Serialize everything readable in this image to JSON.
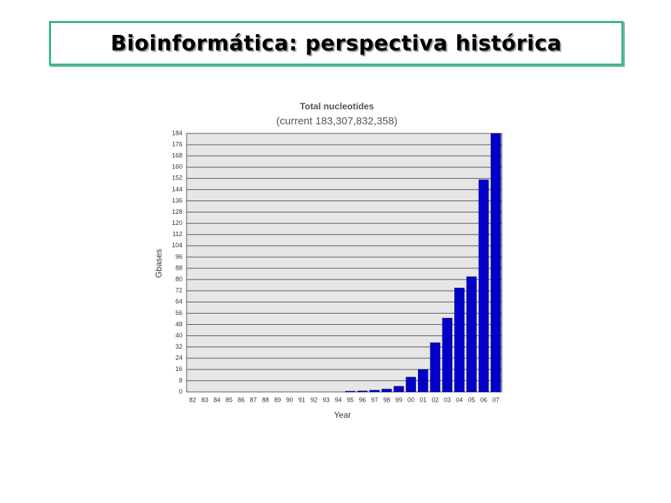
{
  "header": {
    "title": "Bioinformática: perspectiva histórica"
  },
  "chart_data": {
    "type": "bar",
    "title": "Total nucleotides",
    "subtitle": "(current 183,307,832,358)",
    "x_label": "Year",
    "y_label": "Gbases",
    "categories": [
      "82",
      "83",
      "84",
      "85",
      "86",
      "87",
      "88",
      "89",
      "90",
      "91",
      "92",
      "93",
      "94",
      "95",
      "96",
      "97",
      "98",
      "99",
      "00",
      "01",
      "02",
      "03",
      "04",
      "05",
      "06",
      "07"
    ],
    "values": [
      0,
      0,
      0,
      0,
      0,
      0,
      0,
      0,
      0,
      0,
      0,
      0,
      0,
      0.5,
      0.7,
      1.2,
      2,
      4,
      10.5,
      16,
      35,
      52.5,
      74,
      82,
      151,
      184
    ],
    "color": "#0000c8",
    "ylim": [
      0,
      184
    ],
    "yticks": [
      0,
      8,
      16,
      24,
      32,
      40,
      48,
      56,
      64,
      72,
      80,
      88,
      96,
      104,
      112,
      120,
      128,
      136,
      144,
      152,
      160,
      168,
      176,
      184
    ],
    "grid": true
  }
}
